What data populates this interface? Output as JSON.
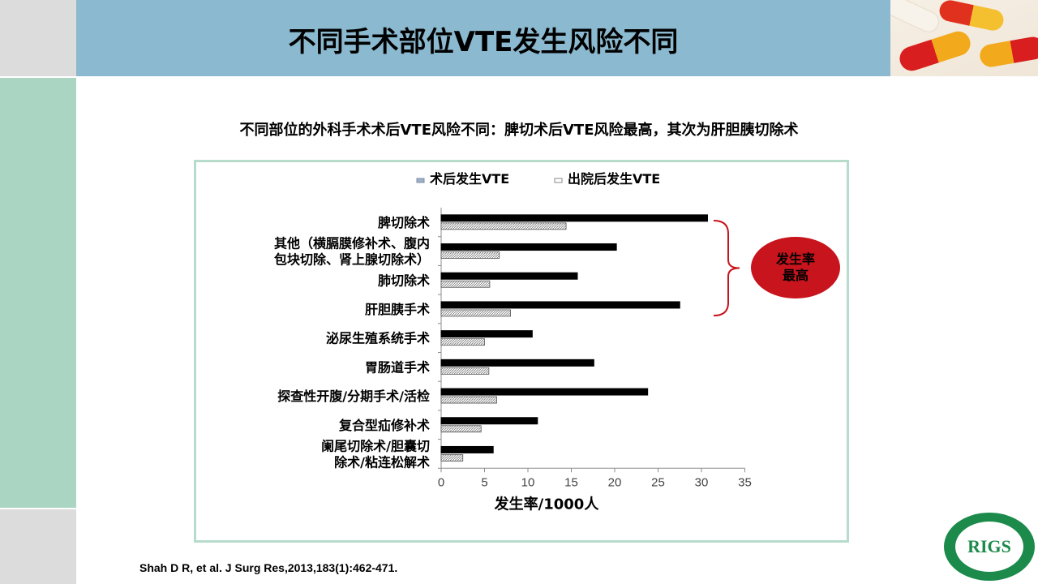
{
  "title": "不同手术部位VTE发生风险不同",
  "subtitle": "不同部位的外科手术术后VTE风险不同：脾切术后VTE风险最高，其次为肝胆胰切除术",
  "callout": "发生率最高",
  "citation": "Shah D R, et al. J Surg Res,2013,183(1):462-471.",
  "logo": {
    "text": "RIGS"
  },
  "colors": {
    "postop_bar": "#000000",
    "discharge_bar": "#c8c8c8",
    "bracket": "#c8141c",
    "callout": "#c8141c"
  },
  "chart_data": {
    "type": "bar",
    "orientation": "horizontal",
    "categories": [
      "脾切除术",
      "其他（横膈膜修补术、腹内包块切除、肾上腺切除术）",
      "肺切除术",
      "肝胆胰手术",
      "泌尿生殖系统手术",
      "胃肠道手术",
      "探查性开腹/分期手术/活检",
      "复合型疝修补术",
      "阑尾切除术/胆囊切除术/粘连松解术"
    ],
    "category_lines": [
      [
        "脾切除术"
      ],
      [
        "其他（横膈膜修补术、腹内",
        "包块切除、肾上腺切除术）"
      ],
      [
        "肺切除术"
      ],
      [
        "肝胆胰手术"
      ],
      [
        "泌尿生殖系统手术"
      ],
      [
        "胃肠道手术"
      ],
      [
        "探查性开腹/分期手术/活检"
      ],
      [
        "复合型疝修补术"
      ],
      [
        "阑尾切除术/胆囊切",
        "除术/粘连松解术"
      ]
    ],
    "series": [
      {
        "name": "术后发生VTE",
        "values": [
          30.7,
          20.2,
          15.7,
          27.5,
          10.5,
          17.6,
          23.8,
          11.1,
          6.0
        ]
      },
      {
        "name": "出院后发生VTE",
        "values": [
          14.4,
          6.7,
          5.6,
          8.0,
          5.0,
          5.5,
          6.4,
          4.6,
          2.5
        ]
      }
    ],
    "xlabel": "发生率/1000人",
    "ylabel": "",
    "xlim": [
      0,
      35
    ],
    "xticks": [
      0,
      5,
      10,
      15,
      20,
      25,
      30,
      35
    ],
    "grid": false,
    "legend_position": "top"
  }
}
